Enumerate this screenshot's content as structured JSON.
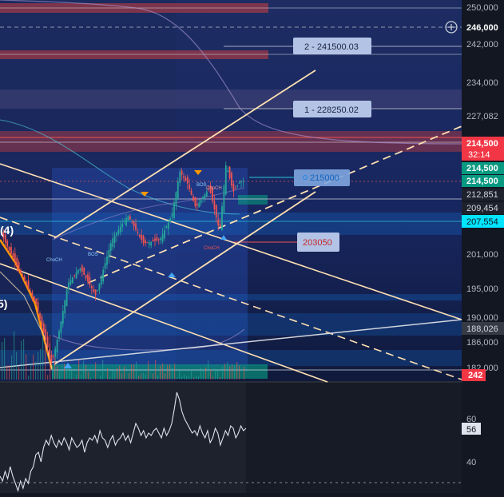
{
  "chart_data": {
    "type": "line",
    "title": "",
    "price_axis": {
      "ticks": [
        "250,000",
        "242,000",
        "234,000",
        "227,082",
        "201,000",
        "195,000",
        "190,000",
        "186,000",
        "182,000"
      ],
      "highlighted": [
        "246,000",
        "214,500",
        "214,500",
        "214,500",
        "212,851",
        "209,454",
        "207,554",
        "188,026",
        "242"
      ],
      "countdown": "32:14",
      "ylim": [
        180000,
        252000
      ]
    },
    "annotations": [
      {
        "text": "2 - 241500.03",
        "value": 241500.03
      },
      {
        "text": "1 - 228250.02",
        "value": 228250.02
      },
      {
        "text": "215000",
        "value": 215000
      },
      {
        "text": "203050",
        "value": 203050
      }
    ],
    "wave_labels": [
      "(4)",
      "5)"
    ],
    "markers": [
      "ChoCH",
      "BOS",
      "ChoCH",
      "ChoCH",
      "BOS"
    ],
    "oscillator": {
      "ticks": [
        "60",
        "40"
      ],
      "current": "56",
      "ylim": [
        30,
        74
      ],
      "values": [
        36,
        34,
        38,
        35,
        40,
        36,
        33,
        30,
        34,
        31,
        35,
        33,
        38,
        40,
        45,
        46,
        42,
        48,
        51,
        49,
        53,
        50,
        48,
        51,
        49,
        52,
        50,
        47,
        52,
        50,
        48,
        49,
        51,
        46,
        50,
        52,
        51,
        53,
        50,
        55,
        52,
        51,
        48,
        51,
        53,
        49,
        51,
        52,
        54,
        51,
        53,
        50,
        54,
        58,
        56,
        53,
        55,
        52,
        54,
        53,
        55,
        56,
        54,
        52,
        56,
        53,
        55,
        58,
        64,
        71,
        68,
        63,
        60,
        58,
        56,
        54,
        55,
        53,
        57,
        54,
        52,
        55,
        50,
        52,
        56,
        54,
        49,
        52,
        55,
        53,
        57,
        56,
        52,
        54,
        57,
        55,
        56
      ]
    },
    "colors": {
      "background": "#131722",
      "channel": "#ffe0b2",
      "candle_up": "#26a69a",
      "candle_down": "#ef5350",
      "resistance_zone": "#f44336",
      "demand_zone": "#1565c0",
      "axis_highlight_green": "#089981",
      "axis_highlight_red": "#f23645",
      "axis_highlight_cyan": "#00e5ff"
    }
  }
}
